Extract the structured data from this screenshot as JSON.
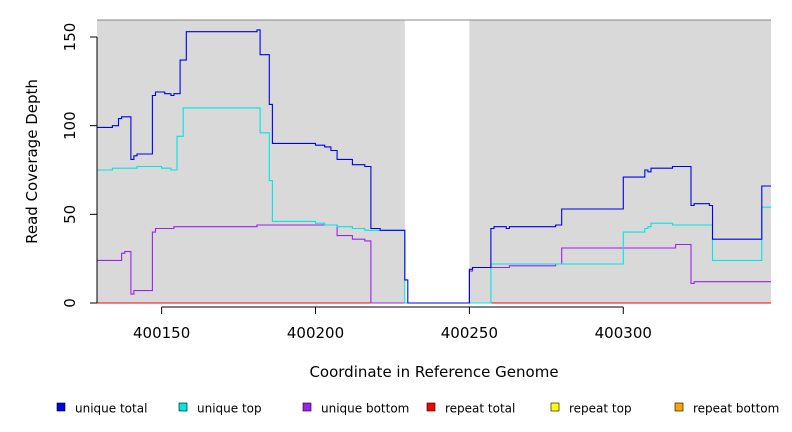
{
  "chart_data": {
    "type": "line",
    "xlabel": "Coordinate in Reference Genome",
    "ylabel": "Read Coverage Depth",
    "xlim": [
      400129,
      400348
    ],
    "ylim": [
      0,
      150
    ],
    "x_ticks": [
      400150,
      400200,
      400250,
      400300
    ],
    "y_ticks": [
      0,
      50,
      100,
      150
    ],
    "gap_region": [
      400229,
      400250
    ],
    "grid": false,
    "legend_position": "bottom",
    "background_color": "#d9d9d9",
    "series": [
      {
        "name": "unique total",
        "color": "#0000ee",
        "points": [
          [
            400129,
            99
          ],
          [
            400134,
            100
          ],
          [
            400136,
            104
          ],
          [
            400137,
            105
          ],
          [
            400140,
            81
          ],
          [
            400141,
            83
          ],
          [
            400142,
            84
          ],
          [
            400147,
            117
          ],
          [
            400148,
            119
          ],
          [
            400151,
            118
          ],
          [
            400153,
            117
          ],
          [
            400154,
            118
          ],
          [
            400156,
            137
          ],
          [
            400158,
            153
          ],
          [
            400181,
            154
          ],
          [
            400182,
            140
          ],
          [
            400185,
            112
          ],
          [
            400186,
            90
          ],
          [
            400200,
            89
          ],
          [
            400203,
            88
          ],
          [
            400205,
            86
          ],
          [
            400207,
            81
          ],
          [
            400212,
            78
          ],
          [
            400216,
            77
          ],
          [
            400218,
            42
          ],
          [
            400221,
            41
          ],
          [
            400229,
            13
          ],
          [
            400230,
            0
          ],
          [
            400250,
            19
          ],
          [
            400251,
            20
          ],
          [
            400257,
            42
          ],
          [
            400258,
            43
          ],
          [
            400262,
            42
          ],
          [
            400263,
            43
          ],
          [
            400278,
            44
          ],
          [
            400280,
            53
          ],
          [
            400300,
            71
          ],
          [
            400307,
            75
          ],
          [
            400308,
            74
          ],
          [
            400309,
            76
          ],
          [
            400316,
            77
          ],
          [
            400322,
            55
          ],
          [
            400323,
            56
          ],
          [
            400328,
            55
          ],
          [
            400329,
            36
          ],
          [
            400345,
            66
          ]
        ]
      },
      {
        "name": "unique top",
        "color": "#00e5e5",
        "points": [
          [
            400129,
            75
          ],
          [
            400134,
            76
          ],
          [
            400137,
            76
          ],
          [
            400142,
            77
          ],
          [
            400149,
            77
          ],
          [
            400150,
            76
          ],
          [
            400153,
            75
          ],
          [
            400155,
            94
          ],
          [
            400157,
            110
          ],
          [
            400182,
            96
          ],
          [
            400185,
            69
          ],
          [
            400186,
            46
          ],
          [
            400199,
            46
          ],
          [
            400200,
            45
          ],
          [
            400203,
            44
          ],
          [
            400205,
            44
          ],
          [
            400207,
            43
          ],
          [
            400212,
            42
          ],
          [
            400216,
            41
          ],
          [
            400218,
            41
          ],
          [
            400221,
            41
          ],
          [
            400229,
            0
          ],
          [
            400250,
            0
          ],
          [
            400257,
            22
          ],
          [
            400280,
            22
          ],
          [
            400300,
            40
          ],
          [
            400307,
            42
          ],
          [
            400308,
            43
          ],
          [
            400309,
            45
          ],
          [
            400316,
            44
          ],
          [
            400329,
            24
          ],
          [
            400345,
            54
          ]
        ]
      },
      {
        "name": "unique bottom",
        "color": "#a020f0",
        "points": [
          [
            400129,
            24
          ],
          [
            400137,
            28
          ],
          [
            400138,
            29
          ],
          [
            400140,
            5
          ],
          [
            400141,
            7
          ],
          [
            400147,
            40
          ],
          [
            400148,
            42
          ],
          [
            400154,
            43
          ],
          [
            400181,
            44
          ],
          [
            400207,
            38
          ],
          [
            400212,
            36
          ],
          [
            400216,
            35
          ],
          [
            400218,
            0
          ],
          [
            400229,
            0
          ],
          [
            400250,
            18
          ],
          [
            400251,
            20
          ],
          [
            400262,
            20
          ],
          [
            400263,
            21
          ],
          [
            400278,
            22
          ],
          [
            400280,
            31
          ],
          [
            400317,
            33
          ],
          [
            400322,
            11
          ],
          [
            400323,
            12
          ],
          [
            400348,
            12
          ]
        ]
      },
      {
        "name": "repeat total",
        "color": "#ff0000",
        "points": [
          [
            400129,
            0
          ],
          [
            400348,
            0
          ]
        ]
      },
      {
        "name": "repeat top",
        "color": "#ffff00",
        "points": [
          [
            400129,
            0
          ],
          [
            400348,
            0
          ]
        ]
      },
      {
        "name": "repeat bottom",
        "color": "#ffa500",
        "points": [
          [
            400129,
            0
          ],
          [
            400348,
            0
          ]
        ]
      }
    ]
  }
}
